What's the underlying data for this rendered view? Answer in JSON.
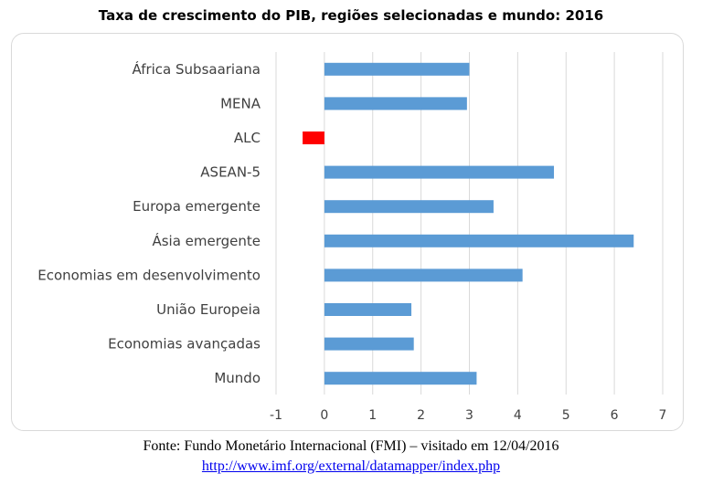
{
  "chart_data": {
    "type": "bar",
    "orientation": "horizontal",
    "title": "Taxa de crescimento do PIB, regiões selecionadas e mundo: 2016",
    "categories": [
      "África Subsaariana",
      "MENA",
      "ALC",
      "ASEAN-5",
      "Europa emergente",
      "Ásia emergente",
      "Economias em desenvolvimento",
      "União Europeia",
      "Economias avançadas",
      "Mundo"
    ],
    "values": [
      3.0,
      2.95,
      -0.45,
      4.75,
      3.5,
      6.4,
      4.1,
      1.8,
      1.85,
      3.15
    ],
    "xlim": [
      -1,
      7
    ],
    "xticks": [
      "-1",
      "0",
      "1",
      "2",
      "3",
      "4",
      "5",
      "6",
      "7"
    ],
    "grid": true,
    "colors": {
      "positive": "#5b9bd5",
      "negative": "#ff0000",
      "grid": "#d9d9d9"
    }
  },
  "source": {
    "text": "Fonte: Fundo Monetário Internacional (FMI) – visitado em 12/04/2016",
    "link": "http://www.imf.org/external/datamapper/index.php"
  }
}
